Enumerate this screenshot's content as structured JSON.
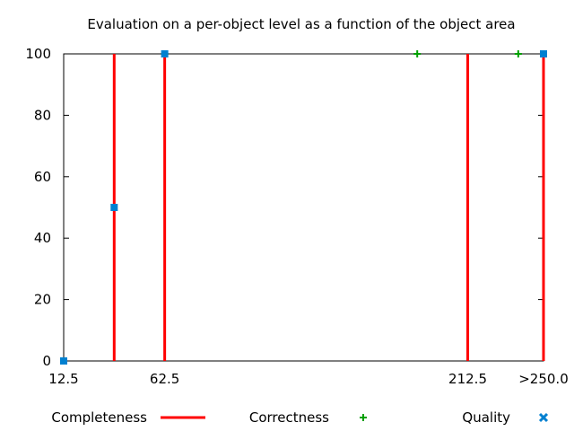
{
  "chart_data": {
    "type": "line",
    "title": "Evaluation on a per-object level as a function of the object area",
    "xlabel": "",
    "ylabel": "",
    "xlim": [
      12.5,
      250
    ],
    "ylim": [
      0,
      100
    ],
    "grid": false,
    "legend_position": "bottom",
    "x_tick_labels": [
      {
        "x": 12.5,
        "label": "12.5"
      },
      {
        "x": 62.5,
        "label": "62.5"
      },
      {
        "x": 212.5,
        "label": "212.5"
      },
      {
        "x": 250,
        "label": ">250.0"
      }
    ],
    "y_ticks": [
      0,
      20,
      40,
      60,
      80,
      100
    ],
    "series": [
      {
        "name": "Completeness",
        "style": "impulses",
        "color": "#ff0000",
        "points": [
          {
            "x": 37.5,
            "y": 100
          },
          {
            "x": 62.5,
            "y": 100
          },
          {
            "x": 212.5,
            "y": 100
          },
          {
            "x": 250,
            "y": 100
          }
        ]
      },
      {
        "name": "Correctness",
        "style": "plus-markers",
        "color": "#00a000",
        "points": [
          {
            "x": 62.5,
            "y": 100
          },
          {
            "x": 187.5,
            "y": 100
          },
          {
            "x": 237.5,
            "y": 100
          },
          {
            "x": 250,
            "y": 100
          }
        ]
      },
      {
        "name": "Quality",
        "style": "square-markers",
        "color": "#0080d0",
        "points": [
          {
            "x": 12.5,
            "y": 0
          },
          {
            "x": 37.5,
            "y": 50
          },
          {
            "x": 62.5,
            "y": 100
          },
          {
            "x": 250,
            "y": 100
          }
        ]
      }
    ]
  }
}
